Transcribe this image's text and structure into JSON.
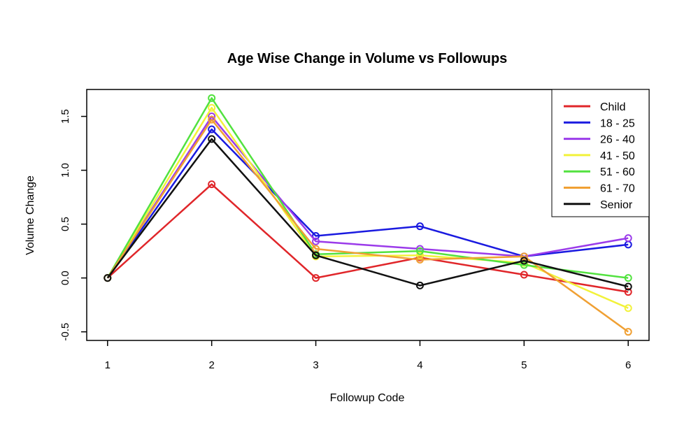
{
  "chart_data": {
    "type": "line",
    "title": "Age Wise Change in Volume vs Followups",
    "xlabel": "Followup Code",
    "ylabel": "Volume Change",
    "x": [
      1,
      2,
      3,
      4,
      5,
      6
    ],
    "x_ticks": [
      "1",
      "2",
      "3",
      "4",
      "5",
      "6"
    ],
    "y_ticks": [
      "-0.5",
      "0.0",
      "0.5",
      "1.0",
      "1.5"
    ],
    "y_tick_values": [
      -0.5,
      0.0,
      0.5,
      1.0,
      1.5
    ],
    "ylim": [
      -0.58,
      1.75
    ],
    "xlim": [
      0.8,
      6.2
    ],
    "grid": false,
    "legend_position": "top-right",
    "series": [
      {
        "name": "Child",
        "color": "#e0262a",
        "values": [
          0.0,
          0.87,
          0.0,
          0.19,
          0.03,
          -0.13
        ]
      },
      {
        "name": "18 - 25",
        "color": "#1a1ae0",
        "values": [
          0.0,
          1.38,
          0.39,
          0.48,
          0.2,
          0.31
        ]
      },
      {
        "name": "26 - 40",
        "color": "#9b3bea",
        "values": [
          0.0,
          1.5,
          0.34,
          0.27,
          0.2,
          0.37
        ]
      },
      {
        "name": "41 - 50",
        "color": "#f2f23a",
        "values": [
          0.0,
          1.58,
          0.2,
          0.21,
          0.14,
          -0.28
        ]
      },
      {
        "name": "51 - 60",
        "color": "#52e23f",
        "values": [
          0.0,
          1.67,
          0.22,
          0.25,
          0.12,
          0.0
        ]
      },
      {
        "name": "61 - 70",
        "color": "#f0a033",
        "values": [
          0.0,
          1.47,
          0.27,
          0.17,
          0.2,
          -0.5
        ]
      },
      {
        "name": "Senior",
        "color": "#111111",
        "values": [
          0.0,
          1.29,
          0.21,
          -0.07,
          0.16,
          -0.08
        ]
      }
    ]
  }
}
